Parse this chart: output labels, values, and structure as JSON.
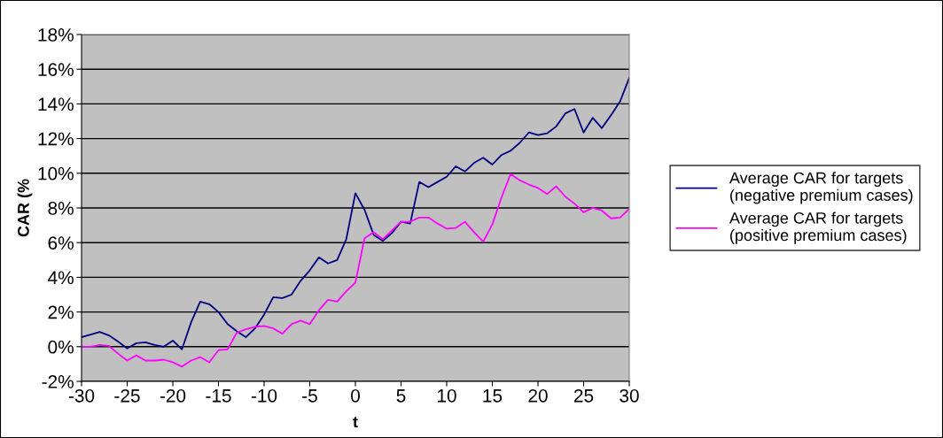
{
  "chart_data": {
    "type": "line",
    "xlabel": "t",
    "ylabel": "CAR (%",
    "x": [
      -30,
      -29,
      -28,
      -27,
      -26,
      -25,
      -24,
      -23,
      -22,
      -21,
      -20,
      -19,
      -18,
      -17,
      -16,
      -15,
      -14,
      -13,
      -12,
      -11,
      -10,
      -9,
      -8,
      -7,
      -6,
      -5,
      -4,
      -3,
      -2,
      -1,
      0,
      1,
      2,
      3,
      4,
      5,
      6,
      7,
      8,
      9,
      10,
      11,
      12,
      13,
      14,
      15,
      16,
      17,
      18,
      19,
      20,
      21,
      22,
      23,
      24,
      25,
      26,
      27,
      28,
      29,
      30
    ],
    "series": [
      {
        "name": "Average CAR for targets\n(negative premium cases)",
        "color": "#000080",
        "values": [
          0.55,
          0.7,
          0.85,
          0.65,
          0.3,
          -0.1,
          0.2,
          0.25,
          0.1,
          0.0,
          0.35,
          -0.15,
          1.4,
          2.6,
          2.45,
          2.0,
          1.3,
          0.9,
          0.55,
          1.05,
          1.85,
          2.85,
          2.8,
          3.0,
          3.8,
          4.4,
          5.15,
          4.8,
          5.0,
          6.2,
          8.85,
          7.9,
          6.45,
          6.1,
          6.55,
          7.2,
          7.1,
          9.5,
          9.2,
          9.5,
          9.8,
          10.4,
          10.1,
          10.6,
          10.9,
          10.5,
          11.05,
          11.3,
          11.75,
          12.35,
          12.2,
          12.3,
          12.7,
          13.45,
          13.7,
          12.35,
          13.2,
          12.6,
          13.35,
          14.15,
          15.5
        ]
      },
      {
        "name": "Average CAR for targets\n(positive premium cases)",
        "color": "#ff00ff",
        "values": [
          0.0,
          0.0,
          0.1,
          0.05,
          -0.4,
          -0.8,
          -0.5,
          -0.8,
          -0.8,
          -0.75,
          -0.9,
          -1.15,
          -0.8,
          -0.6,
          -0.9,
          -0.2,
          -0.15,
          0.8,
          1.0,
          1.15,
          1.2,
          1.05,
          0.75,
          1.3,
          1.5,
          1.3,
          2.1,
          2.7,
          2.6,
          3.2,
          3.7,
          6.25,
          6.6,
          6.2,
          6.7,
          7.2,
          7.2,
          7.45,
          7.45,
          7.1,
          6.8,
          6.85,
          7.2,
          6.6,
          6.05,
          7.05,
          8.6,
          9.95,
          9.6,
          9.35,
          9.15,
          8.8,
          9.25,
          8.65,
          8.25,
          7.75,
          8.0,
          7.85,
          7.4,
          7.45,
          7.95
        ]
      }
    ],
    "xlim": [
      -30,
      30
    ],
    "xticks": [
      -30,
      -25,
      -20,
      -15,
      -10,
      -5,
      0,
      5,
      10,
      15,
      20,
      25,
      30
    ],
    "ylim": [
      -2,
      18
    ],
    "yticks": [
      {
        "value": -2,
        "label": "-2%"
      },
      {
        "value": 0,
        "label": "0%"
      },
      {
        "value": 2,
        "label": "2%"
      },
      {
        "value": 4,
        "label": "4%"
      },
      {
        "value": 6,
        "label": "6%"
      },
      {
        "value": 8,
        "label": "8%"
      },
      {
        "value": 10,
        "label": "10%"
      },
      {
        "value": 12,
        "label": "12%"
      },
      {
        "value": 14,
        "label": "14%"
      },
      {
        "value": 16,
        "label": "16%"
      },
      {
        "value": 18,
        "label": "18%"
      }
    ],
    "grid": "y",
    "legend": "right",
    "marker": "none",
    "line_style": "solid"
  }
}
